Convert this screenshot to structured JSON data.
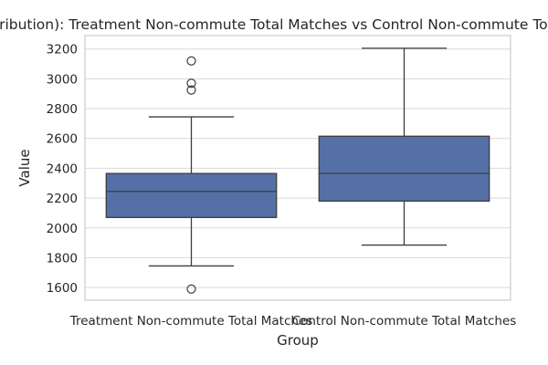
{
  "chart_data": {
    "type": "box",
    "title": "(Distribution): Treatment Non-commute Total Matches vs Control Non-commute Total Matches",
    "xlabel": "Group",
    "ylabel": "Value",
    "ylim": [
      1515,
      3290
    ],
    "yticks": [
      1600,
      1800,
      2000,
      2200,
      2400,
      2600,
      2800,
      3000,
      3200
    ],
    "grid": true,
    "legend": "none",
    "colors": {
      "box_fill": "#5470a6",
      "line": "#3d3d3d",
      "grid": "#d9d9d9",
      "frame": "#cccccc"
    },
    "categories": [
      "Treatment Non-commute Total Matches",
      "Control Non-commute Total Matches"
    ],
    "boxes": [
      {
        "whisker_low": 1745,
        "q1": 2070,
        "median": 2245,
        "q3": 2365,
        "whisker_high": 2745,
        "outliers": [
          1590,
          2925,
          2970,
          3120
        ]
      },
      {
        "whisker_low": 1885,
        "q1": 2180,
        "median": 2365,
        "q3": 2615,
        "whisker_high": 3205,
        "outliers": []
      }
    ]
  }
}
